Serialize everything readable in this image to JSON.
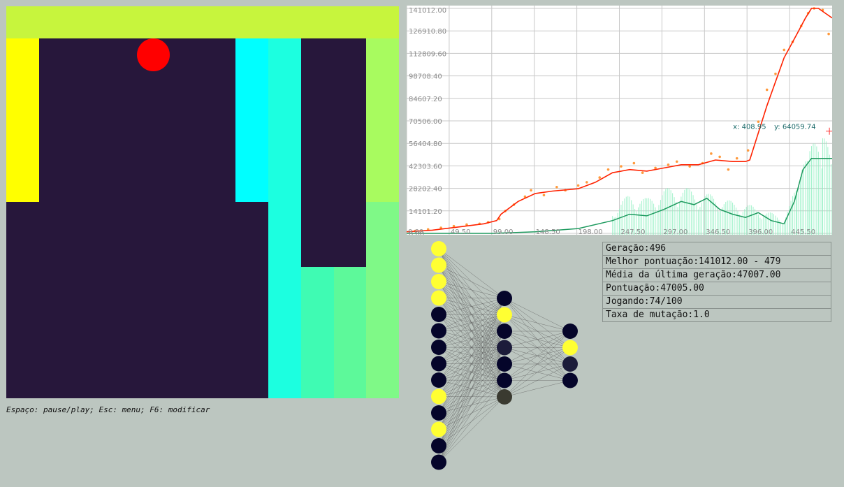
{
  "game": {
    "colors": {
      "yellow_top": "#c7f53d",
      "yellow_left": "#ffff00",
      "yellow_right": "#a8fb5f",
      "dark": "#27173b",
      "cyan": "#00ffff",
      "aqua": "#1cffe0",
      "teal": "#2dfcc9",
      "mint1": "#3ffbb3",
      "mint2": "#5df99a",
      "mint3": "#7ff987",
      "ball": "#ff0000"
    }
  },
  "help_text": "Espaço: pause/play; Esc: menu; F6: modificar",
  "chart_data": {
    "type": "line",
    "title": "",
    "xlabel": "",
    "ylabel": "",
    "xlim": [
      0,
      496
    ],
    "ylim": [
      0,
      141012
    ],
    "x_ticks": [
      "0.00",
      "49.50",
      "99.00",
      "148.50",
      "198.00",
      "247.50",
      "297.00",
      "346.50",
      "396.00",
      "445.50"
    ],
    "y_ticks": [
      "0.00",
      "14101.20",
      "28202.40",
      "42303.60",
      "56404.80",
      "70506.00",
      "84607.20",
      "98708.40",
      "112809.60",
      "126910.80",
      "141012.00"
    ],
    "grid": true,
    "cursor": {
      "x_label": "x: 408.95",
      "y_label": "y: 64059.74",
      "x": 408.95,
      "y": 64059.74
    },
    "best_series": {
      "color": "#ff2200",
      "points": [
        [
          0,
          1000
        ],
        [
          30,
          2000
        ],
        [
          60,
          4000
        ],
        [
          90,
          6000
        ],
        [
          105,
          8000
        ],
        [
          110,
          12000
        ],
        [
          130,
          20000
        ],
        [
          150,
          25000
        ],
        [
          170,
          26500
        ],
        [
          200,
          28000
        ],
        [
          220,
          32000
        ],
        [
          240,
          38000
        ],
        [
          260,
          40000
        ],
        [
          280,
          39000
        ],
        [
          300,
          41000
        ],
        [
          320,
          43000
        ],
        [
          340,
          43000
        ],
        [
          360,
          46000
        ],
        [
          380,
          45000
        ],
        [
          395,
          45000
        ],
        [
          400,
          46000
        ],
        [
          420,
          80000
        ],
        [
          440,
          110000
        ],
        [
          455,
          125000
        ],
        [
          465,
          135000
        ],
        [
          472,
          141012
        ],
        [
          480,
          141012
        ],
        [
          496,
          135000
        ]
      ]
    },
    "scatter_series": {
      "color": "#ff9a3c",
      "points": [
        [
          10,
          1500
        ],
        [
          25,
          2500
        ],
        [
          40,
          3500
        ],
        [
          55,
          4500
        ],
        [
          70,
          5500
        ],
        [
          85,
          6000
        ],
        [
          95,
          7000
        ],
        [
          108,
          9000
        ],
        [
          115,
          14000
        ],
        [
          125,
          18000
        ],
        [
          138,
          23000
        ],
        [
          145,
          27000
        ],
        [
          160,
          24000
        ],
        [
          175,
          29000
        ],
        [
          185,
          27000
        ],
        [
          200,
          30000
        ],
        [
          210,
          32000
        ],
        [
          225,
          35000
        ],
        [
          235,
          40000
        ],
        [
          250,
          42000
        ],
        [
          265,
          44000
        ],
        [
          275,
          38000
        ],
        [
          290,
          41000
        ],
        [
          305,
          43000
        ],
        [
          315,
          45000
        ],
        [
          330,
          42000
        ],
        [
          345,
          44000
        ],
        [
          355,
          50000
        ],
        [
          365,
          48000
        ],
        [
          375,
          40000
        ],
        [
          385,
          47000
        ],
        [
          398,
          52000
        ],
        [
          410,
          70000
        ],
        [
          420,
          90000
        ],
        [
          430,
          100000
        ],
        [
          440,
          115000
        ],
        [
          450,
          120000
        ],
        [
          460,
          130000
        ],
        [
          468,
          138000
        ],
        [
          475,
          141012
        ],
        [
          485,
          140000
        ],
        [
          492,
          125000
        ]
      ]
    },
    "average_series": {
      "color": "#1d9a5e",
      "points": [
        [
          0,
          0
        ],
        [
          100,
          0
        ],
        [
          150,
          1000
        ],
        [
          200,
          3000
        ],
        [
          240,
          8000
        ],
        [
          260,
          12000
        ],
        [
          280,
          11000
        ],
        [
          300,
          15000
        ],
        [
          320,
          20000
        ],
        [
          335,
          18000
        ],
        [
          350,
          22000
        ],
        [
          365,
          15000
        ],
        [
          380,
          12000
        ],
        [
          395,
          10000
        ],
        [
          410,
          13000
        ],
        [
          425,
          8000
        ],
        [
          440,
          6000
        ],
        [
          452,
          20000
        ],
        [
          462,
          40000
        ],
        [
          472,
          47000
        ],
        [
          496,
          47000
        ]
      ]
    },
    "bars_series": {
      "color": "#8ef0c0",
      "points": [
        [
          240,
          15000
        ],
        [
          260,
          25000
        ],
        [
          280,
          22000
        ],
        [
          300,
          28000
        ],
        [
          320,
          30000
        ],
        [
          340,
          26000
        ],
        [
          360,
          24000
        ],
        [
          380,
          20000
        ],
        [
          400,
          18000
        ],
        [
          420,
          14000
        ],
        [
          440,
          10000
        ],
        [
          455,
          30000
        ],
        [
          470,
          55000
        ],
        [
          485,
          60000
        ],
        [
          496,
          58000
        ]
      ]
    }
  },
  "network": {
    "colors": {
      "on": "#ffff33",
      "off": "#05052a",
      "mid": "#1c1c3a",
      "dim": "#3a3a30",
      "edge": "#555555"
    },
    "layers": [
      [
        "on",
        "on",
        "on",
        "on",
        "off",
        "off",
        "off",
        "off",
        "off",
        "on",
        "off",
        "on",
        "off",
        "off"
      ],
      [
        "off",
        "on",
        "off",
        "mid",
        "off",
        "off",
        "dim"
      ],
      [
        "off",
        "on",
        "mid",
        "off"
      ]
    ]
  },
  "stats": {
    "geracao": "Geração:496",
    "melhor": "Melhor pontuação:141012.00 - 479",
    "media": "Média da última geração:47007.00",
    "pontuacao": "Pontuação:47005.00",
    "jogando": "Jogando:74/100",
    "taxa": "Taxa de mutação:1.0"
  }
}
